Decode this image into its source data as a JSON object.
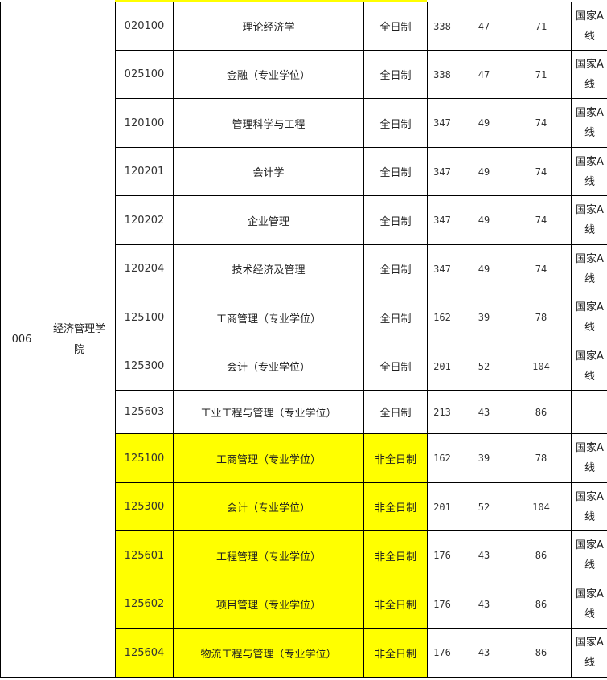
{
  "dept_code": "006",
  "dept_name": "经济管理学院",
  "rows": [
    {
      "code": "020100",
      "name": "理论经济学",
      "type": "全日制",
      "total": "338",
      "single1": "47",
      "single2": "71",
      "note": "国家A线",
      "highlight": false
    },
    {
      "code": "025100",
      "name": "金融（专业学位）",
      "type": "全日制",
      "total": "338",
      "single1": "47",
      "single2": "71",
      "note": "国家A线",
      "highlight": false
    },
    {
      "code": "120100",
      "name": "管理科学与工程",
      "type": "全日制",
      "total": "347",
      "single1": "49",
      "single2": "74",
      "note": "国家A线",
      "highlight": false
    },
    {
      "code": "120201",
      "name": "会计学",
      "type": "全日制",
      "total": "347",
      "single1": "49",
      "single2": "74",
      "note": "国家A线",
      "highlight": false
    },
    {
      "code": "120202",
      "name": "企业管理",
      "type": "全日制",
      "total": "347",
      "single1": "49",
      "single2": "74",
      "note": "国家A线",
      "highlight": false
    },
    {
      "code": "120204",
      "name": "技术经济及管理",
      "type": "全日制",
      "total": "347",
      "single1": "49",
      "single2": "74",
      "note": "国家A线",
      "highlight": false
    },
    {
      "code": "125100",
      "name": "工商管理（专业学位）",
      "type": "全日制",
      "total": "162",
      "single1": "39",
      "single2": "78",
      "note": "国家A线",
      "highlight": false
    },
    {
      "code": "125300",
      "name": "会计（专业学位）",
      "type": "全日制",
      "total": "201",
      "single1": "52",
      "single2": "104",
      "note": "国家A线",
      "highlight": false
    },
    {
      "code": "125603",
      "name": "工业工程与管理（专业学位）",
      "type": "全日制",
      "total": "213",
      "single1": "43",
      "single2": "86",
      "note": "",
      "highlight": false
    },
    {
      "code": "125100",
      "name": "工商管理（专业学位）",
      "type": "非全日制",
      "total": "162",
      "single1": "39",
      "single2": "78",
      "note": "国家A线",
      "highlight": true
    },
    {
      "code": "125300",
      "name": "会计（专业学位）",
      "type": "非全日制",
      "total": "201",
      "single1": "52",
      "single2": "104",
      "note": "国家A线",
      "highlight": true
    },
    {
      "code": "125601",
      "name": "工程管理（专业学位）",
      "type": "非全日制",
      "total": "176",
      "single1": "43",
      "single2": "86",
      "note": "国家A线",
      "highlight": true
    },
    {
      "code": "125602",
      "name": "项目管理（专业学位）",
      "type": "非全日制",
      "total": "176",
      "single1": "43",
      "single2": "86",
      "note": "国家A线",
      "highlight": true
    },
    {
      "code": "125604",
      "name": "物流工程与管理（专业学位）",
      "type": "非全日制",
      "total": "176",
      "single1": "43",
      "single2": "86",
      "note": "国家A线",
      "highlight": true
    }
  ],
  "colors": {
    "highlight": "#ffff00",
    "border": "#000000"
  }
}
